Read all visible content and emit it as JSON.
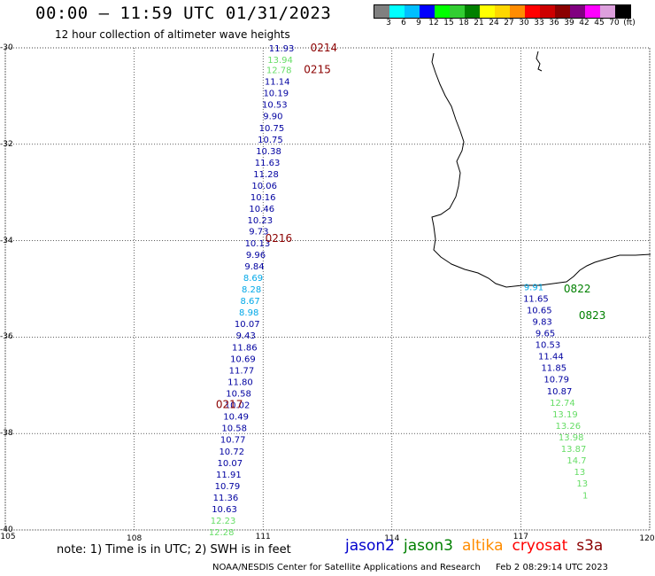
{
  "header": {
    "title": "00:00 — 11:59 UTC 01/31/2023",
    "subtitle": "12 hour collection of altimeter wave heights"
  },
  "colorbar": {
    "colors": [
      "#808080",
      "#00ffff",
      "#00bfff",
      "#0000ff",
      "#00ff00",
      "#32cd32",
      "#008000",
      "#ffff00",
      "#ffd700",
      "#ff8c00",
      "#ff0000",
      "#cd0000",
      "#8b0000",
      "#800080",
      "#ff00ff",
      "#dda0dd",
      "#000000"
    ],
    "labels": [
      "3",
      "6",
      "9",
      "12",
      "15",
      "18",
      "21",
      "24",
      "27",
      "30",
      "33",
      "36",
      "39",
      "42",
      "45",
      "70",
      "(ft)"
    ]
  },
  "axes": {
    "lat_ticks": [
      "-30",
      "-32",
      "-34",
      "-36",
      "-38",
      "-40"
    ],
    "lon_ticks": [
      "105",
      "108",
      "111",
      "114",
      "117",
      "120"
    ]
  },
  "tracks": [
    {
      "satellite": "jason2",
      "time_labels": [
        {
          "text": "0214",
          "lat": -30.0,
          "lon": 112.1
        },
        {
          "text": "0215",
          "lat": -30.45,
          "lon": 111.95
        },
        {
          "text": "0216",
          "lat": -33.95,
          "lon": 111.05
        },
        {
          "text": "0217",
          "lat": -37.4,
          "lon": 109.9
        }
      ],
      "points": [
        {
          "lon": 111.43,
          "lat": -30.0,
          "v": "11.93",
          "color": "#0000a0"
        },
        {
          "lon": 111.4,
          "lat": -30.24,
          "v": "13.94",
          "color": "#66dd66"
        },
        {
          "lon": 111.37,
          "lat": -30.45,
          "v": "12.78",
          "color": "#66dd66"
        },
        {
          "lon": 111.33,
          "lat": -30.69,
          "v": "11.14",
          "color": "#0000a0"
        },
        {
          "lon": 111.3,
          "lat": -30.93,
          "v": "10.19",
          "color": "#0000a0"
        },
        {
          "lon": 111.27,
          "lat": -31.17,
          "v": "10.53",
          "color": "#0000a0"
        },
        {
          "lon": 111.23,
          "lat": -31.41,
          "v": "9.90",
          "color": "#0000a0"
        },
        {
          "lon": 111.2,
          "lat": -31.65,
          "v": "10.75",
          "color": "#0000a0"
        },
        {
          "lon": 111.17,
          "lat": -31.89,
          "v": "10.75",
          "color": "#0000a0"
        },
        {
          "lon": 111.13,
          "lat": -32.13,
          "v": "10.38",
          "color": "#0000a0"
        },
        {
          "lon": 111.1,
          "lat": -32.37,
          "v": "11.63",
          "color": "#0000a0"
        },
        {
          "lon": 111.07,
          "lat": -32.61,
          "v": "11.28",
          "color": "#0000a0"
        },
        {
          "lon": 111.03,
          "lat": -32.85,
          "v": "10.06",
          "color": "#0000a0"
        },
        {
          "lon": 111.0,
          "lat": -33.09,
          "v": "10.16",
          "color": "#0000a0"
        },
        {
          "lon": 110.97,
          "lat": -33.33,
          "v": "10.46",
          "color": "#0000a0"
        },
        {
          "lon": 110.93,
          "lat": -33.57,
          "v": "10.23",
          "color": "#0000a0"
        },
        {
          "lon": 110.9,
          "lat": -33.8,
          "v": "9.73",
          "color": "#0000a0"
        },
        {
          "lon": 110.87,
          "lat": -34.04,
          "v": "10.13",
          "color": "#0000a0"
        },
        {
          "lon": 110.83,
          "lat": -34.28,
          "v": "9.96",
          "color": "#0000a0"
        },
        {
          "lon": 110.8,
          "lat": -34.52,
          "v": "9.84",
          "color": "#0000a0"
        },
        {
          "lon": 110.77,
          "lat": -34.76,
          "v": "8.69",
          "color": "#00a8e8"
        },
        {
          "lon": 110.73,
          "lat": -35.0,
          "v": "8.28",
          "color": "#00a8e8"
        },
        {
          "lon": 110.7,
          "lat": -35.24,
          "v": "8.67",
          "color": "#00a8e8"
        },
        {
          "lon": 110.67,
          "lat": -35.48,
          "v": "8.98",
          "color": "#00a8e8"
        },
        {
          "lon": 110.63,
          "lat": -35.72,
          "v": "10.07",
          "color": "#0000a0"
        },
        {
          "lon": 110.6,
          "lat": -35.96,
          "v": "9.43",
          "color": "#0000a0"
        },
        {
          "lon": 110.57,
          "lat": -36.2,
          "v": "11.86",
          "color": "#0000a0"
        },
        {
          "lon": 110.53,
          "lat": -36.44,
          "v": "10.69",
          "color": "#0000a0"
        },
        {
          "lon": 110.5,
          "lat": -36.68,
          "v": "11.77",
          "color": "#0000a0"
        },
        {
          "lon": 110.47,
          "lat": -36.92,
          "v": "11.80",
          "color": "#0000a0"
        },
        {
          "lon": 110.43,
          "lat": -37.16,
          "v": "10.58",
          "color": "#0000a0"
        },
        {
          "lon": 110.4,
          "lat": -37.4,
          "v": "10.02",
          "color": "#0000a0"
        },
        {
          "lon": 110.37,
          "lat": -37.64,
          "v": "10.49",
          "color": "#0000a0"
        },
        {
          "lon": 110.33,
          "lat": -37.88,
          "v": "10.58",
          "color": "#0000a0"
        },
        {
          "lon": 110.3,
          "lat": -38.12,
          "v": "10.77",
          "color": "#0000a0"
        },
        {
          "lon": 110.27,
          "lat": -38.36,
          "v": "10.72",
          "color": "#0000a0"
        },
        {
          "lon": 110.23,
          "lat": -38.6,
          "v": "10.07",
          "color": "#0000a0"
        },
        {
          "lon": 110.2,
          "lat": -38.84,
          "v": "11.91",
          "color": "#0000a0"
        },
        {
          "lon": 110.17,
          "lat": -39.08,
          "v": "10.79",
          "color": "#0000a0"
        },
        {
          "lon": 110.13,
          "lat": -39.32,
          "v": "11.36",
          "color": "#0000a0"
        },
        {
          "lon": 110.1,
          "lat": -39.56,
          "v": "10.63",
          "color": "#0000a0"
        },
        {
          "lon": 110.07,
          "lat": -39.8,
          "v": "12.23",
          "color": "#66dd66"
        },
        {
          "lon": 110.03,
          "lat": -40.04,
          "v": "12.28",
          "color": "#66dd66"
        }
      ]
    },
    {
      "satellite": "jason3",
      "time_labels": [
        {
          "text": "0822",
          "lat": -35.0,
          "lon": 118.0
        },
        {
          "text": "0823",
          "lat": -35.55,
          "lon": 118.35
        }
      ],
      "points": [
        {
          "lon": 117.3,
          "lat": -34.95,
          "v": "9.91",
          "color": "#00a8e8"
        },
        {
          "lon": 117.35,
          "lat": -35.19,
          "v": "11.65",
          "color": "#0000a0"
        },
        {
          "lon": 117.43,
          "lat": -35.43,
          "v": "10.65",
          "color": "#0000a0"
        },
        {
          "lon": 117.5,
          "lat": -35.67,
          "v": "9.83",
          "color": "#0000a0"
        },
        {
          "lon": 117.57,
          "lat": -35.91,
          "v": "9.65",
          "color": "#0000a0"
        },
        {
          "lon": 117.63,
          "lat": -36.15,
          "v": "10.53",
          "color": "#0000a0"
        },
        {
          "lon": 117.7,
          "lat": -36.39,
          "v": "11.44",
          "color": "#0000a0"
        },
        {
          "lon": 117.77,
          "lat": -36.63,
          "v": "11.85",
          "color": "#0000a0"
        },
        {
          "lon": 117.83,
          "lat": -36.87,
          "v": "10.79",
          "color": "#0000a0"
        },
        {
          "lon": 117.9,
          "lat": -37.11,
          "v": "10.87",
          "color": "#0000a0"
        },
        {
          "lon": 117.97,
          "lat": -37.35,
          "v": "12.74",
          "color": "#66dd66"
        },
        {
          "lon": 118.03,
          "lat": -37.59,
          "v": "13.19",
          "color": "#66dd66"
        },
        {
          "lon": 118.1,
          "lat": -37.83,
          "v": "13.26",
          "color": "#66dd66"
        },
        {
          "lon": 118.17,
          "lat": -38.07,
          "v": "13.98",
          "color": "#66dd66"
        },
        {
          "lon": 118.23,
          "lat": -38.31,
          "v": "13.87",
          "color": "#66dd66"
        },
        {
          "lon": 118.3,
          "lat": -38.55,
          "v": "14.7",
          "color": "#66dd66"
        },
        {
          "lon": 118.37,
          "lat": -38.79,
          "v": "13",
          "color": "#66dd66"
        },
        {
          "lon": 118.43,
          "lat": -39.03,
          "v": "13",
          "color": "#66dd66"
        },
        {
          "lon": 118.5,
          "lat": -39.27,
          "v": "1",
          "color": "#66dd66"
        }
      ]
    }
  ],
  "footer": {
    "note": "note:  1) Time is in UTC;  2) SWH is in feet",
    "legend": [
      {
        "name": "jason2",
        "color": "#0000cd"
      },
      {
        "name": "jason3",
        "color": "#008000"
      },
      {
        "name": "altika",
        "color": "#ff8c00"
      },
      {
        "name": "cryosat",
        "color": "#ff0000"
      },
      {
        "name": "s3a",
        "color": "#8b0000"
      }
    ],
    "credit": "NOAA/NESDIS Center for Satellite Applications and Research",
    "date": "Feb  2 08:29:14 UTC 2023"
  }
}
